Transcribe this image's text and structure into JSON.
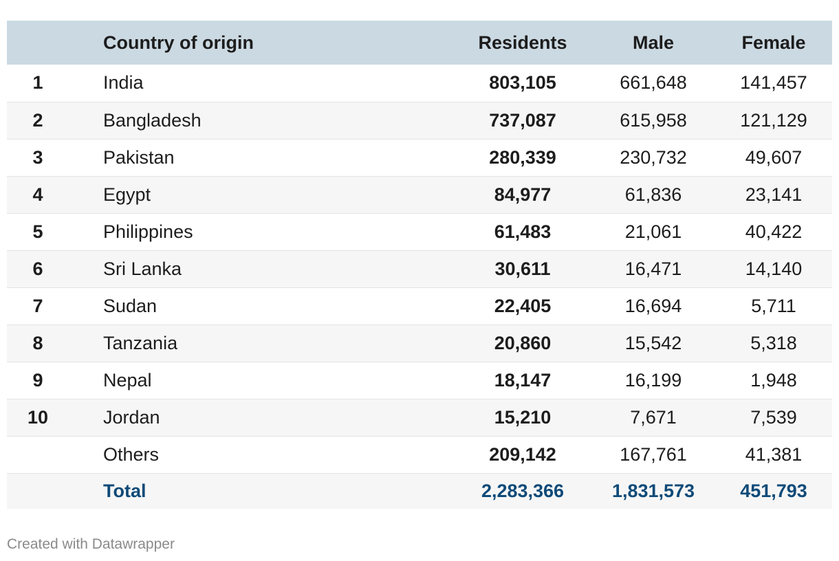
{
  "chart_data": {
    "type": "table",
    "columns": {
      "rank": "",
      "country": "Country of origin",
      "residents": "Residents",
      "male": "Male",
      "female": "Female"
    },
    "rows": [
      {
        "rank": "1",
        "country": "India",
        "residents": "803,105",
        "male": "661,648",
        "female": "141,457"
      },
      {
        "rank": "2",
        "country": "Bangladesh",
        "residents": "737,087",
        "male": "615,958",
        "female": "121,129"
      },
      {
        "rank": "3",
        "country": "Pakistan",
        "residents": "280,339",
        "male": "230,732",
        "female": "49,607"
      },
      {
        "rank": "4",
        "country": "Egypt",
        "residents": "84,977",
        "male": "61,836",
        "female": "23,141"
      },
      {
        "rank": "5",
        "country": "Philippines",
        "residents": "61,483",
        "male": "21,061",
        "female": "40,422"
      },
      {
        "rank": "6",
        "country": "Sri Lanka",
        "residents": "30,611",
        "male": "16,471",
        "female": "14,140"
      },
      {
        "rank": "7",
        "country": "Sudan",
        "residents": "22,405",
        "male": "16,694",
        "female": "5,711"
      },
      {
        "rank": "8",
        "country": "Tanzania",
        "residents": "20,860",
        "male": "15,542",
        "female": "5,318"
      },
      {
        "rank": "9",
        "country": "Nepal",
        "residents": "18,147",
        "male": "16,199",
        "female": "1,948"
      },
      {
        "rank": "10",
        "country": "Jordan",
        "residents": "15,210",
        "male": "7,671",
        "female": "7,539"
      },
      {
        "rank": "",
        "country": "Others",
        "residents": "209,142",
        "male": "167,761",
        "female": "41,381"
      }
    ],
    "total": {
      "label": "Total",
      "residents": "2,283,366",
      "male": "1,831,573",
      "female": "451,793"
    }
  },
  "credit": "Created with Datawrapper",
  "colors": {
    "header_bg": "#cbd9e2",
    "stripe_bg": "#f6f6f6",
    "total_text": "#0f4a78",
    "credit_text": "#8a8a8a"
  }
}
